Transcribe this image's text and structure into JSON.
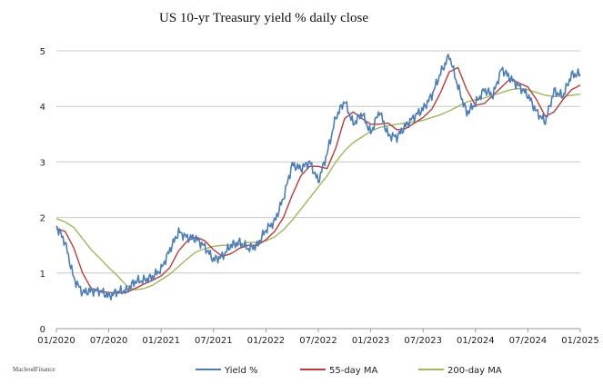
{
  "chart_data": {
    "type": "line",
    "title": "US 10-yr Treasury yield % daily close",
    "xlabel": "",
    "ylabel": "",
    "ylim": [
      0,
      5
    ],
    "yticks": [
      0,
      1,
      2,
      3,
      4,
      5
    ],
    "xlim": [
      "2020-01",
      "2025-01"
    ],
    "xticks": [
      "01/2020",
      "07/2020",
      "01/2021",
      "07/2021",
      "01/2022",
      "07/2022",
      "01/2023",
      "07/2023",
      "01/2024",
      "07/2024",
      "01/2025"
    ],
    "grid": {
      "horizontal": true,
      "vertical": false
    },
    "legend": "bottom",
    "source": "MacleodFinance",
    "x": [
      "2020-01",
      "2020-02",
      "2020-03",
      "2020-04",
      "2020-05",
      "2020-06",
      "2020-07",
      "2020-08",
      "2020-09",
      "2020-10",
      "2020-11",
      "2020-12",
      "2021-01",
      "2021-02",
      "2021-03",
      "2021-04",
      "2021-05",
      "2021-06",
      "2021-07",
      "2021-08",
      "2021-09",
      "2021-10",
      "2021-11",
      "2021-12",
      "2022-01",
      "2022-02",
      "2022-03",
      "2022-04",
      "2022-05",
      "2022-06",
      "2022-07",
      "2022-08",
      "2022-09",
      "2022-10",
      "2022-11",
      "2022-12",
      "2023-01",
      "2023-02",
      "2023-03",
      "2023-04",
      "2023-05",
      "2023-06",
      "2023-07",
      "2023-08",
      "2023-09",
      "2023-10",
      "2023-11",
      "2023-12",
      "2024-01",
      "2024-02",
      "2024-03",
      "2024-04",
      "2024-05",
      "2024-06",
      "2024-07",
      "2024-08",
      "2024-09",
      "2024-10",
      "2024-11",
      "2024-12",
      "2025-01"
    ],
    "series": [
      {
        "name": "Yield %",
        "color": "#4a7ebb",
        "values": [
          1.85,
          1.55,
          0.9,
          0.65,
          0.68,
          0.68,
          0.58,
          0.67,
          0.68,
          0.85,
          0.87,
          0.93,
          1.07,
          1.42,
          1.74,
          1.64,
          1.62,
          1.47,
          1.24,
          1.3,
          1.5,
          1.55,
          1.44,
          1.5,
          1.78,
          1.93,
          2.35,
          2.95,
          2.88,
          3.0,
          2.65,
          3.15,
          3.8,
          4.1,
          3.68,
          3.88,
          3.52,
          3.92,
          3.48,
          3.45,
          3.65,
          3.82,
          3.95,
          4.2,
          4.6,
          4.92,
          4.35,
          3.88,
          4.05,
          4.3,
          4.2,
          4.68,
          4.5,
          4.36,
          4.2,
          3.9,
          3.72,
          4.28,
          4.18,
          4.57,
          4.58
        ]
      },
      {
        "name": "55-day MA",
        "color": "#c0393b",
        "values": [
          1.8,
          1.75,
          1.45,
          1.0,
          0.72,
          0.67,
          0.65,
          0.64,
          0.65,
          0.72,
          0.8,
          0.87,
          0.95,
          1.1,
          1.4,
          1.58,
          1.65,
          1.58,
          1.42,
          1.3,
          1.35,
          1.45,
          1.5,
          1.5,
          1.6,
          1.75,
          2.0,
          2.4,
          2.75,
          2.92,
          2.92,
          2.88,
          3.25,
          3.78,
          3.9,
          3.78,
          3.68,
          3.68,
          3.7,
          3.58,
          3.6,
          3.7,
          3.8,
          3.95,
          4.25,
          4.62,
          4.7,
          4.3,
          4.02,
          4.05,
          4.2,
          4.35,
          4.5,
          4.42,
          4.35,
          4.12,
          3.82,
          3.9,
          4.12,
          4.3,
          4.38
        ]
      },
      {
        "name": "200-day MA",
        "color": "#9bbb59",
        "values": [
          1.98,
          1.92,
          1.82,
          1.62,
          1.42,
          1.26,
          1.1,
          0.95,
          0.78,
          0.7,
          0.72,
          0.78,
          0.88,
          0.98,
          1.12,
          1.26,
          1.38,
          1.44,
          1.48,
          1.5,
          1.5,
          1.52,
          1.55,
          1.55,
          1.58,
          1.65,
          1.78,
          1.95,
          2.15,
          2.35,
          2.55,
          2.75,
          3.0,
          3.2,
          3.35,
          3.45,
          3.55,
          3.62,
          3.65,
          3.68,
          3.7,
          3.72,
          3.75,
          3.8,
          3.85,
          3.92,
          4.0,
          4.08,
          4.12,
          4.15,
          4.2,
          4.25,
          4.3,
          4.32,
          4.3,
          4.25,
          4.2,
          4.18,
          4.18,
          4.2,
          4.22
        ]
      }
    ]
  }
}
